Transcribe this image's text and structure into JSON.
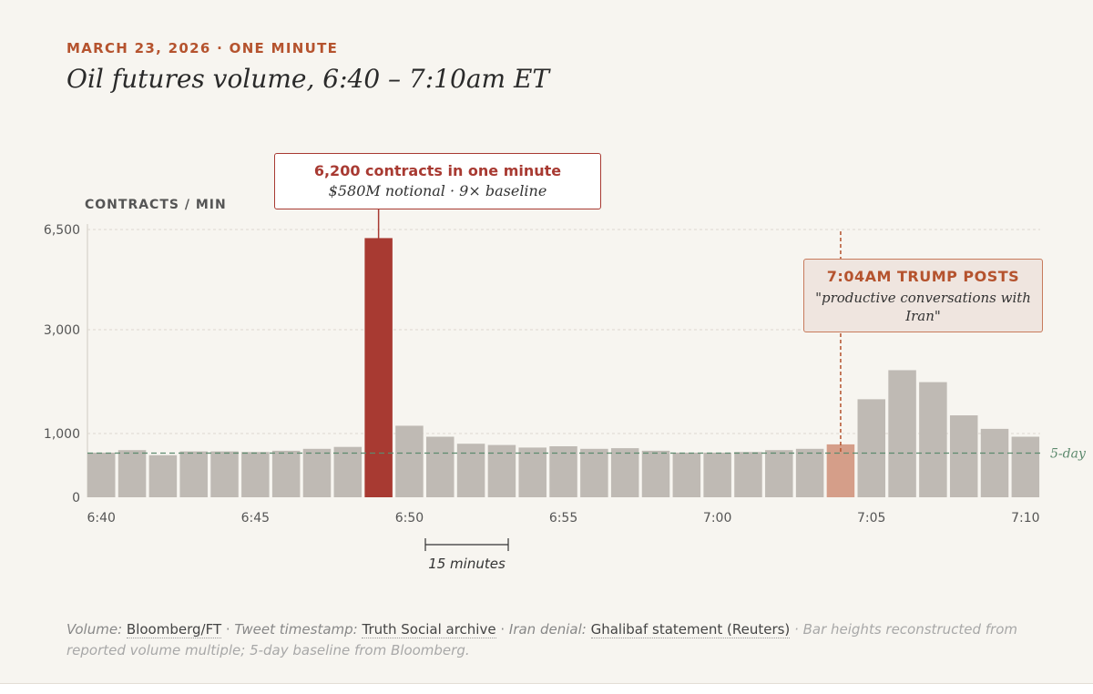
{
  "header": {
    "kicker": "MARCH 23, 2026 · ONE MINUTE",
    "title": "Oil futures volume, 6:40 – 7:10am ET"
  },
  "chart_data": {
    "type": "bar",
    "ylabel": "CONTRACTS / MIN",
    "x": [
      "6:40",
      "6:41",
      "6:42",
      "6:43",
      "6:44",
      "6:45",
      "6:46",
      "6:47",
      "6:48",
      "6:49",
      "6:50",
      "6:51",
      "6:52",
      "6:53",
      "6:54",
      "6:55",
      "6:56",
      "6:57",
      "6:58",
      "6:59",
      "7:00",
      "7:01",
      "7:02",
      "7:03",
      "7:04",
      "7:05",
      "7:06",
      "7:07",
      "7:08",
      "7:09",
      "7:10"
    ],
    "values": [
      700,
      740,
      660,
      720,
      720,
      710,
      730,
      760,
      790,
      6200,
      1150,
      950,
      840,
      820,
      780,
      800,
      760,
      770,
      730,
      700,
      700,
      710,
      740,
      760,
      830,
      1660,
      2220,
      1990,
      1350,
      1090,
      950
    ],
    "y_ticks": [
      0,
      1000,
      3000,
      6500
    ],
    "y_tick_labels": [
      "0",
      "1,000",
      "3,000",
      "6,500"
    ],
    "x_ticks": [
      "6:40",
      "6:45",
      "6:50",
      "6:55",
      "7:00",
      "7:05",
      "7:10"
    ],
    "highlight": {
      "spike": "6:49",
      "trump_post": "7:04"
    },
    "baseline": {
      "label": "5-day",
      "value": 700
    },
    "colors": {
      "bar": "#bfbab4",
      "spike": "#a83a32",
      "trump": "#d59e89",
      "baseline": "#5d8a6e",
      "marker": "#b5532e",
      "grid": "#dcd8d0",
      "axis_text": "#555555"
    }
  },
  "callouts": {
    "spike_title": "6,200 contracts in one minute",
    "spike_sub": "$580M notional · 9× baseline",
    "trump_title": "7:04AM TRUMP POSTS",
    "trump_quote": "\"productive conversations with Iran\""
  },
  "scale_bar": {
    "label": "15 minutes"
  },
  "footnote": {
    "vol_label": "Volume:",
    "vol_src": "Bloomberg/FT",
    "sep": " · ",
    "tweet_label": "Tweet timestamp:",
    "tweet_src": "Truth Social archive",
    "iran_label": "Iran denial:",
    "iran_src": "Ghalibaf statement (Reuters)",
    "method": "Bar heights reconstructed from reported volume multiple; 5-day baseline from Bloomberg."
  }
}
